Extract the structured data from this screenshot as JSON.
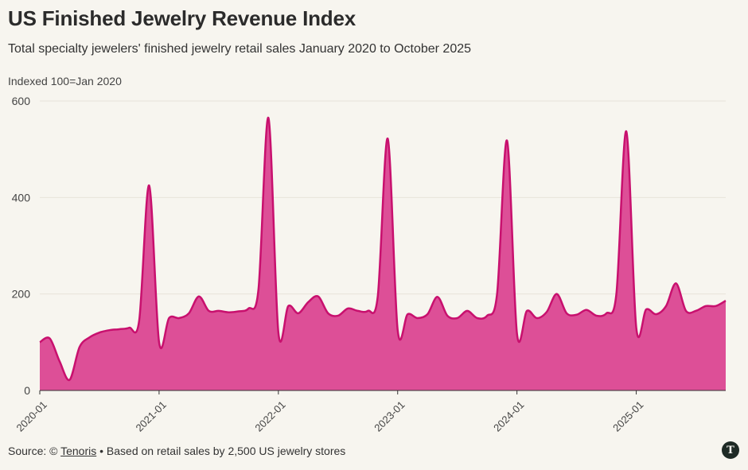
{
  "title": "US Finished Jewelry Revenue Index",
  "subtitle": "Total specialty jewelers' finished jewelry retail sales January 2020 to October 2025",
  "footer": {
    "source_prefix": "Source: © ",
    "source_link": "Tenoris",
    "source_suffix": " • Based on retail sales by 2,500 US jewelry stores"
  },
  "logo": {
    "icon": "tenoris-logo-icon",
    "glyph": "T"
  },
  "colors": {
    "line": "#c8106e",
    "fill": "#dd4f97",
    "grid": "#e7e3da",
    "background": "#f7f5ef"
  },
  "chart_data": {
    "type": "area",
    "ylabel": "Indexed 100=Jan 2020",
    "ylim": [
      0,
      600
    ],
    "yticks": [
      0,
      200,
      400,
      600
    ],
    "xticks": [
      "2020-01",
      "2021-01",
      "2022-01",
      "2023-01",
      "2024-01",
      "2025-01"
    ],
    "grid": "horizontal",
    "x": [
      "2020-01",
      "2020-02",
      "2020-03",
      "2020-04",
      "2020-05",
      "2020-06",
      "2020-07",
      "2020-08",
      "2020-09",
      "2020-10",
      "2020-11",
      "2020-12",
      "2021-01",
      "2021-02",
      "2021-03",
      "2021-04",
      "2021-05",
      "2021-06",
      "2021-07",
      "2021-08",
      "2021-09",
      "2021-10",
      "2021-11",
      "2021-12",
      "2022-01",
      "2022-02",
      "2022-03",
      "2022-04",
      "2022-05",
      "2022-06",
      "2022-07",
      "2022-08",
      "2022-09",
      "2022-10",
      "2022-11",
      "2022-12",
      "2023-01",
      "2023-02",
      "2023-03",
      "2023-04",
      "2023-05",
      "2023-06",
      "2023-07",
      "2023-08",
      "2023-09",
      "2023-10",
      "2023-11",
      "2023-12",
      "2024-01",
      "2024-02",
      "2024-03",
      "2024-04",
      "2024-05",
      "2024-06",
      "2024-07",
      "2024-08",
      "2024-09",
      "2024-10",
      "2024-11",
      "2024-12",
      "2025-01",
      "2025-02",
      "2025-03",
      "2025-04",
      "2025-05",
      "2025-06",
      "2025-07",
      "2025-08",
      "2025-09",
      "2025-10"
    ],
    "series": [
      {
        "values": [
          100,
          108,
          60,
          22,
          90,
          110,
          120,
          125,
          127,
          130,
          145,
          425,
          100,
          150,
          150,
          160,
          195,
          165,
          165,
          162,
          164,
          170,
          210,
          565,
          120,
          175,
          160,
          183,
          195,
          160,
          155,
          170,
          165,
          165,
          195,
          522,
          125,
          158,
          150,
          158,
          194,
          155,
          150,
          165,
          150,
          155,
          200,
          518,
          118,
          165,
          150,
          163,
          200,
          160,
          157,
          167,
          155,
          160,
          200,
          537,
          130,
          168,
          158,
          175,
          222,
          165,
          165,
          175,
          175,
          186
        ]
      }
    ]
  }
}
